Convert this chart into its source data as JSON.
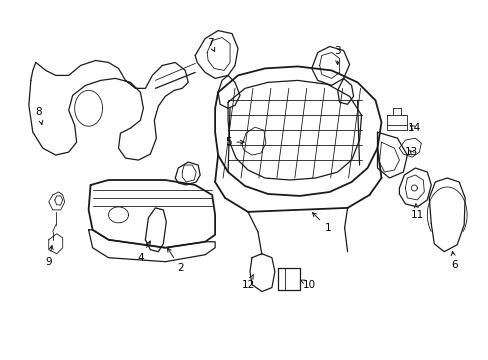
{
  "background_color": "#ffffff",
  "line_color": "#1a1a1a",
  "label_color": "#000000",
  "fig_width": 4.89,
  "fig_height": 3.6,
  "dpi": 100,
  "lw_thick": 1.3,
  "lw_med": 0.9,
  "lw_thin": 0.6,
  "font_size": 7.5,
  "arrow_lw": 0.7,
  "arrow_ms": 7
}
